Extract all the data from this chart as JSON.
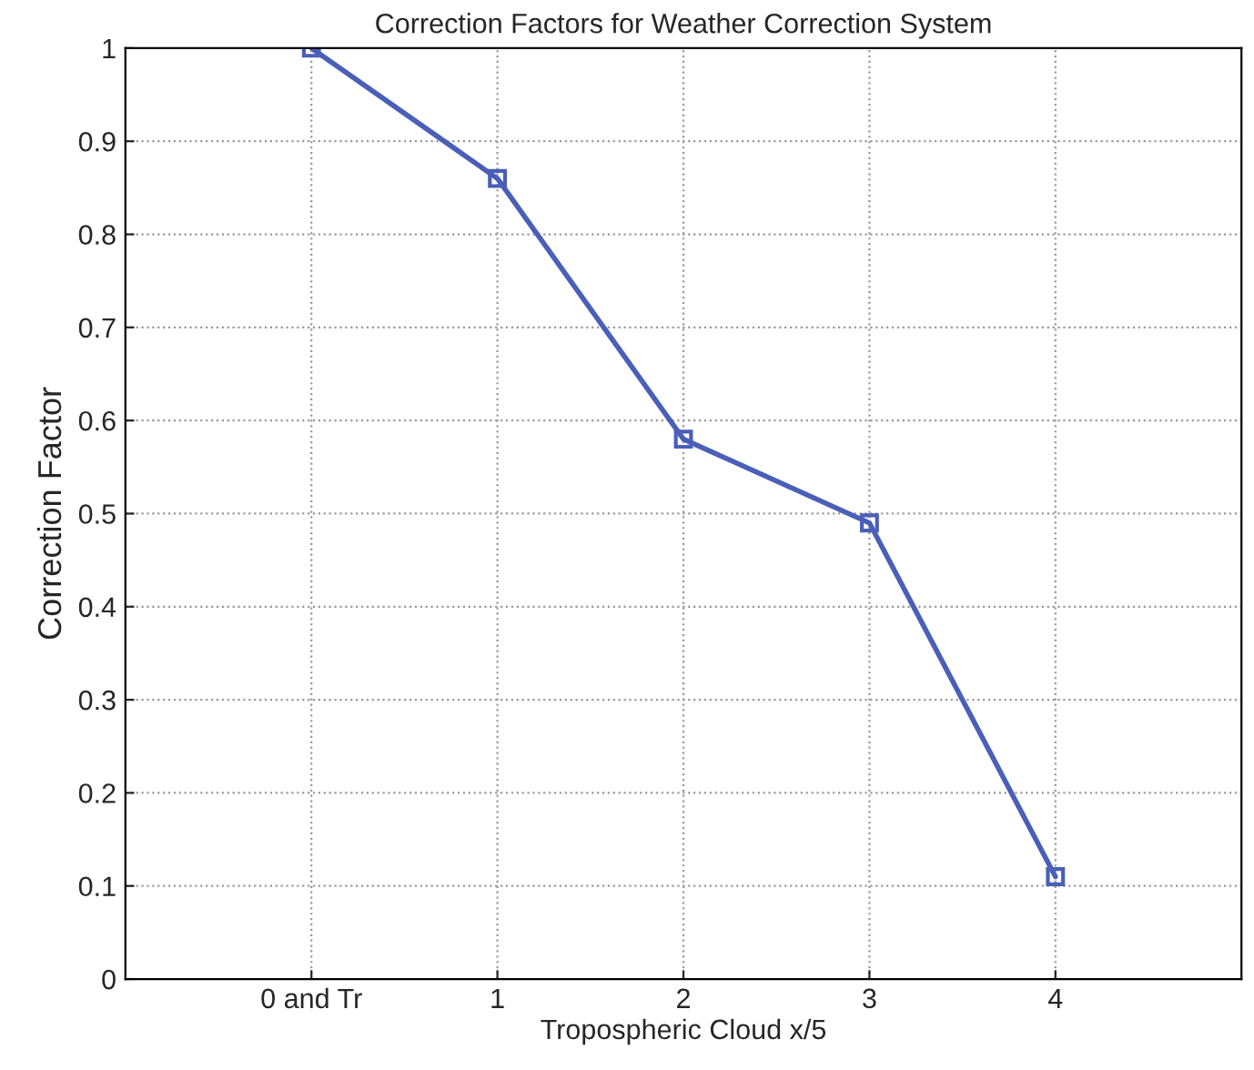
{
  "chart_data": {
    "type": "line",
    "title": "Correction Factors for Weather Correction System",
    "xlabel": "Tropospheric Cloud x/5",
    "ylabel": "Correction Factor",
    "x": [
      0,
      1,
      2,
      3,
      4
    ],
    "series": [
      {
        "color": "#4a5fb8",
        "values": [
          1,
          0.86,
          0.58,
          0.49,
          0.11
        ]
      }
    ],
    "xlim": [
      -1,
      5
    ],
    "xticks": [
      {
        "value": 0,
        "label": "0 and Tr"
      },
      1,
      2,
      3,
      4
    ],
    "ylim": [
      0,
      1
    ],
    "yticks": [
      0,
      0.1,
      0.2,
      0.3,
      0.4,
      0.5,
      0.6,
      0.7,
      0.8,
      0.9,
      1
    ],
    "grid": true,
    "marker": "square",
    "line_style": "solid"
  }
}
